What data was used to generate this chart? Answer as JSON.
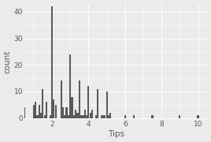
{
  "title": "",
  "xlabel": "Tips",
  "ylabel": "count",
  "xlim": [
    0.5,
    10.5
  ],
  "ylim": [
    -0.5,
    43
  ],
  "yticks": [
    0,
    10,
    20,
    30,
    40
  ],
  "xticks": [
    2,
    4,
    6,
    8,
    10
  ],
  "background_color": "#EBEBEB",
  "bar_color": "#595959",
  "bar_edge_color": "#595959",
  "grid_color": "#FFFFFF",
  "bin_width": 0.1,
  "bar_data": {
    "0.5": 4,
    "0.6": 0,
    "0.7": 0,
    "0.8": 0,
    "0.9": 0,
    "1.0": 5,
    "1.1": 6,
    "1.2": 1,
    "1.3": 5,
    "1.4": 2,
    "1.5": 11,
    "1.6": 1,
    "1.7": 6,
    "1.8": 0,
    "1.9": 1,
    "2.0": 42,
    "2.1": 7,
    "2.2": 5,
    "2.3": 0,
    "2.4": 0,
    "2.5": 14,
    "2.6": 4,
    "2.7": 1,
    "2.8": 4,
    "2.9": 1,
    "3.0": 24,
    "3.1": 8,
    "3.2": 1,
    "3.3": 3,
    "3.4": 2,
    "3.5": 14,
    "3.6": 1,
    "3.7": 1,
    "3.8": 3,
    "3.9": 1,
    "4.0": 12,
    "4.1": 2,
    "4.2": 3,
    "4.3": 0,
    "4.4": 1,
    "4.5": 11,
    "4.6": 0,
    "4.7": 1,
    "4.8": 1,
    "4.9": 1,
    "5.0": 10,
    "5.1": 1,
    "5.2": 2,
    "5.3": 0,
    "5.4": 0,
    "5.5": 0,
    "5.6": 0,
    "5.7": 0,
    "5.8": 0,
    "5.9": 0,
    "6.0": 1,
    "6.1": 0,
    "6.2": 0,
    "6.3": 0,
    "6.4": 0,
    "6.5": 1,
    "6.6": 0,
    "6.7": 0,
    "6.8": 0,
    "6.9": 0,
    "7.0": 0,
    "7.1": 0,
    "7.2": 0,
    "7.3": 0,
    "7.4": 0,
    "7.5": 1,
    "7.6": 0,
    "7.7": 0,
    "7.8": 0,
    "7.9": 0,
    "8.0": 0,
    "8.5": 0,
    "9.0": 1,
    "9.5": 0,
    "10.0": 1
  },
  "label_color": "#5A5A5A",
  "tick_color": "#5A5A5A",
  "tick_fontsize": 6.5,
  "label_fontsize": 7.5
}
